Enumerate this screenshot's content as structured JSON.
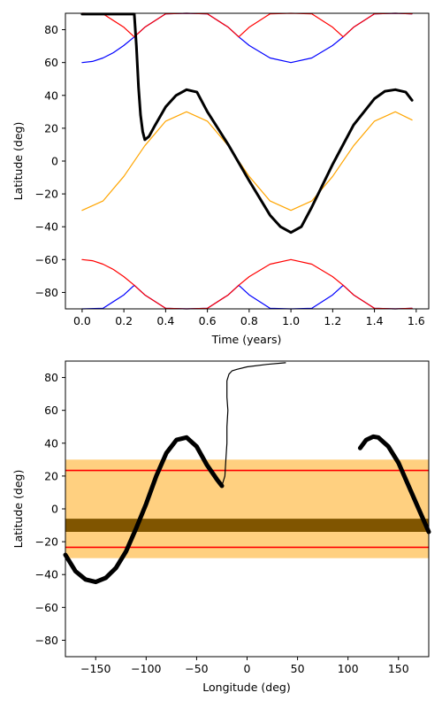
{
  "chart_data": [
    {
      "type": "line",
      "xlabel": "Time (years)",
      "ylabel": "Latitude (deg)",
      "xlim": [
        -0.08,
        1.66
      ],
      "ylim": [
        -90,
        90
      ],
      "xticks": [
        0.0,
        0.2,
        0.4,
        0.6,
        0.8,
        1.0,
        1.2,
        1.4,
        1.6
      ],
      "xtick_labels": [
        "0.0",
        "0.2",
        "0.4",
        "0.6",
        "0.8",
        "1.0",
        "1.2",
        "1.4",
        "1.6"
      ],
      "yticks": [
        -80,
        -60,
        -40,
        -20,
        0,
        20,
        40,
        60,
        80
      ],
      "ytick_labels": [
        "−80",
        "−60",
        "−40",
        "−20",
        "0",
        "20",
        "40",
        "60",
        "80"
      ],
      "grid": false,
      "series": [
        {
          "color": "#ffa500",
          "x": [
            0.0,
            0.1,
            0.2,
            0.3,
            0.4,
            0.5,
            0.6,
            0.7,
            0.8,
            0.9,
            1.0,
            1.1,
            1.2,
            1.3,
            1.4,
            1.5,
            1.58
          ],
          "y": [
            -30,
            -24.3,
            -9.3,
            9.3,
            24.3,
            30,
            24.3,
            9.3,
            -9.3,
            -24.3,
            -30,
            -24.3,
            -9.3,
            9.3,
            24.3,
            30,
            25.0
          ]
        },
        {
          "color": "#0000ff",
          "x": [
            0.0,
            0.05,
            0.1,
            0.15,
            0.2,
            0.25,
            0.3,
            0.4,
            0.5,
            0.6,
            0.7,
            0.75,
            0.8,
            0.9,
            1.0,
            1.1,
            1.2,
            1.25,
            1.3,
            1.4,
            1.5,
            1.58
          ],
          "y": [
            60,
            60.7,
            62.8,
            66.0,
            70.4,
            75.6,
            81.5,
            89.7,
            90,
            89.7,
            81.5,
            75.6,
            70.4,
            62.8,
            60,
            62.8,
            70.4,
            75.6,
            81.5,
            89.7,
            90,
            89.7
          ]
        },
        {
          "color": "#ff0000",
          "x": [
            0.0,
            0.1,
            0.2,
            0.25,
            0.3,
            0.4,
            0.5,
            0.6,
            0.7,
            0.75,
            0.8,
            0.9,
            1.0,
            1.1,
            1.2,
            1.25,
            1.3,
            1.4,
            1.5,
            1.58
          ],
          "y": [
            90,
            89.7,
            81.5,
            75.6,
            81.5,
            89.7,
            90,
            89.7,
            81.5,
            75.6,
            81.5,
            89.7,
            90,
            89.7,
            81.5,
            75.6,
            81.5,
            89.7,
            90,
            89.7
          ]
        },
        {
          "color": "#0000ff",
          "x": [
            0.0,
            0.1,
            0.2,
            0.25,
            0.3,
            0.4,
            0.5,
            0.6,
            0.7,
            0.75,
            0.8,
            0.9,
            1.0,
            1.1,
            1.2,
            1.25,
            1.3,
            1.4,
            1.5,
            1.58
          ],
          "y": [
            -90,
            -89.7,
            -81.5,
            -75.6,
            -81.5,
            -89.7,
            -90,
            -89.7,
            -81.5,
            -75.6,
            -81.5,
            -89.7,
            -90,
            -89.7,
            -81.5,
            -75.6,
            -81.5,
            -89.7,
            -90,
            -89.7
          ]
        },
        {
          "color": "#ff0000",
          "x": [
            0.0,
            0.05,
            0.1,
            0.15,
            0.2,
            0.25,
            0.3,
            0.4,
            0.5,
            0.6,
            0.7,
            0.75,
            0.8,
            0.9,
            1.0,
            1.1,
            1.2,
            1.25,
            1.3,
            1.4,
            1.5,
            1.58
          ],
          "y": [
            -60,
            -60.7,
            -62.8,
            -66.0,
            -70.4,
            -75.6,
            -81.5,
            -89.7,
            -90,
            -89.7,
            -81.5,
            -75.6,
            -70.4,
            -62.8,
            -60,
            -62.8,
            -70.4,
            -75.6,
            -81.5,
            -89.7,
            -90,
            -89.7
          ]
        },
        {
          "color": "#000000",
          "x": [
            0.0,
            0.1,
            0.2,
            0.25,
            0.26,
            0.27,
            0.28,
            0.29,
            0.3,
            0.32,
            0.35,
            0.4,
            0.45,
            0.5,
            0.55,
            0.6,
            0.7,
            0.8,
            0.9,
            0.95,
            1.0,
            1.05,
            1.1,
            1.2,
            1.3,
            1.4,
            1.45,
            1.5,
            1.55,
            1.58
          ],
          "y": [
            89.5,
            89.5,
            89.5,
            89.5,
            70,
            45,
            28,
            18,
            13,
            15,
            22,
            33,
            40,
            43.5,
            42,
            30,
            10,
            -12,
            -33,
            -40,
            -43.5,
            -40,
            -28,
            -2,
            22,
            38,
            42.5,
            43.5,
            42,
            37
          ]
        }
      ]
    },
    {
      "type": "scatter",
      "xlabel": "Longitude (deg)",
      "ylabel": "Latitude (deg)",
      "xlim": [
        -180,
        180
      ],
      "ylim": [
        -90,
        90
      ],
      "xticks": [
        -150,
        -100,
        -50,
        0,
        50,
        100,
        150
      ],
      "xtick_labels": [
        "−150",
        "−100",
        "−50",
        "0",
        "50",
        "100",
        "150"
      ],
      "yticks": [
        -80,
        -60,
        -40,
        -20,
        0,
        20,
        40,
        60,
        80
      ],
      "ytick_labels": [
        "−80",
        "−60",
        "−40",
        "−20",
        "0",
        "20",
        "40",
        "60",
        "80"
      ],
      "grid": false,
      "band": {
        "y_range": [
          -30,
          30
        ],
        "color": "#ffd080"
      },
      "hlines": [
        {
          "y": 23.4,
          "color": "#ff0000"
        },
        {
          "y": -23.4,
          "color": "#ff0000"
        }
      ],
      "equator_band": {
        "y_range": [
          -14,
          -6
        ],
        "color": "#805500"
      },
      "series": [
        {
          "color": "#000000",
          "x": [
            -180,
            -170,
            -160,
            -150,
            -140,
            -130,
            -120,
            -110,
            -100,
            -90,
            -80,
            -70,
            -60,
            -50,
            -40,
            -30,
            -25
          ],
          "y": [
            -28,
            -38,
            -43,
            -44.5,
            -42,
            -36,
            -26,
            -12,
            3,
            20,
            34,
            42,
            43.5,
            38,
            27,
            18,
            14
          ]
        },
        {
          "color": "#000000",
          "x": [
            112,
            118,
            125,
            130,
            140,
            150,
            160,
            170,
            180
          ],
          "y": [
            37,
            42,
            44,
            43.5,
            38,
            28,
            14,
            0,
            -14
          ]
        },
        {
          "color": "#000000",
          "x": [
            -25,
            -22,
            -21,
            -20,
            -20,
            -19,
            -20,
            -20,
            -20,
            -18,
            -15,
            -10,
            0,
            20,
            38
          ],
          "y": [
            14,
            20,
            30,
            40,
            50,
            60,
            68,
            74,
            78,
            82,
            84,
            85,
            86.5,
            88,
            89
          ]
        }
      ]
    }
  ]
}
